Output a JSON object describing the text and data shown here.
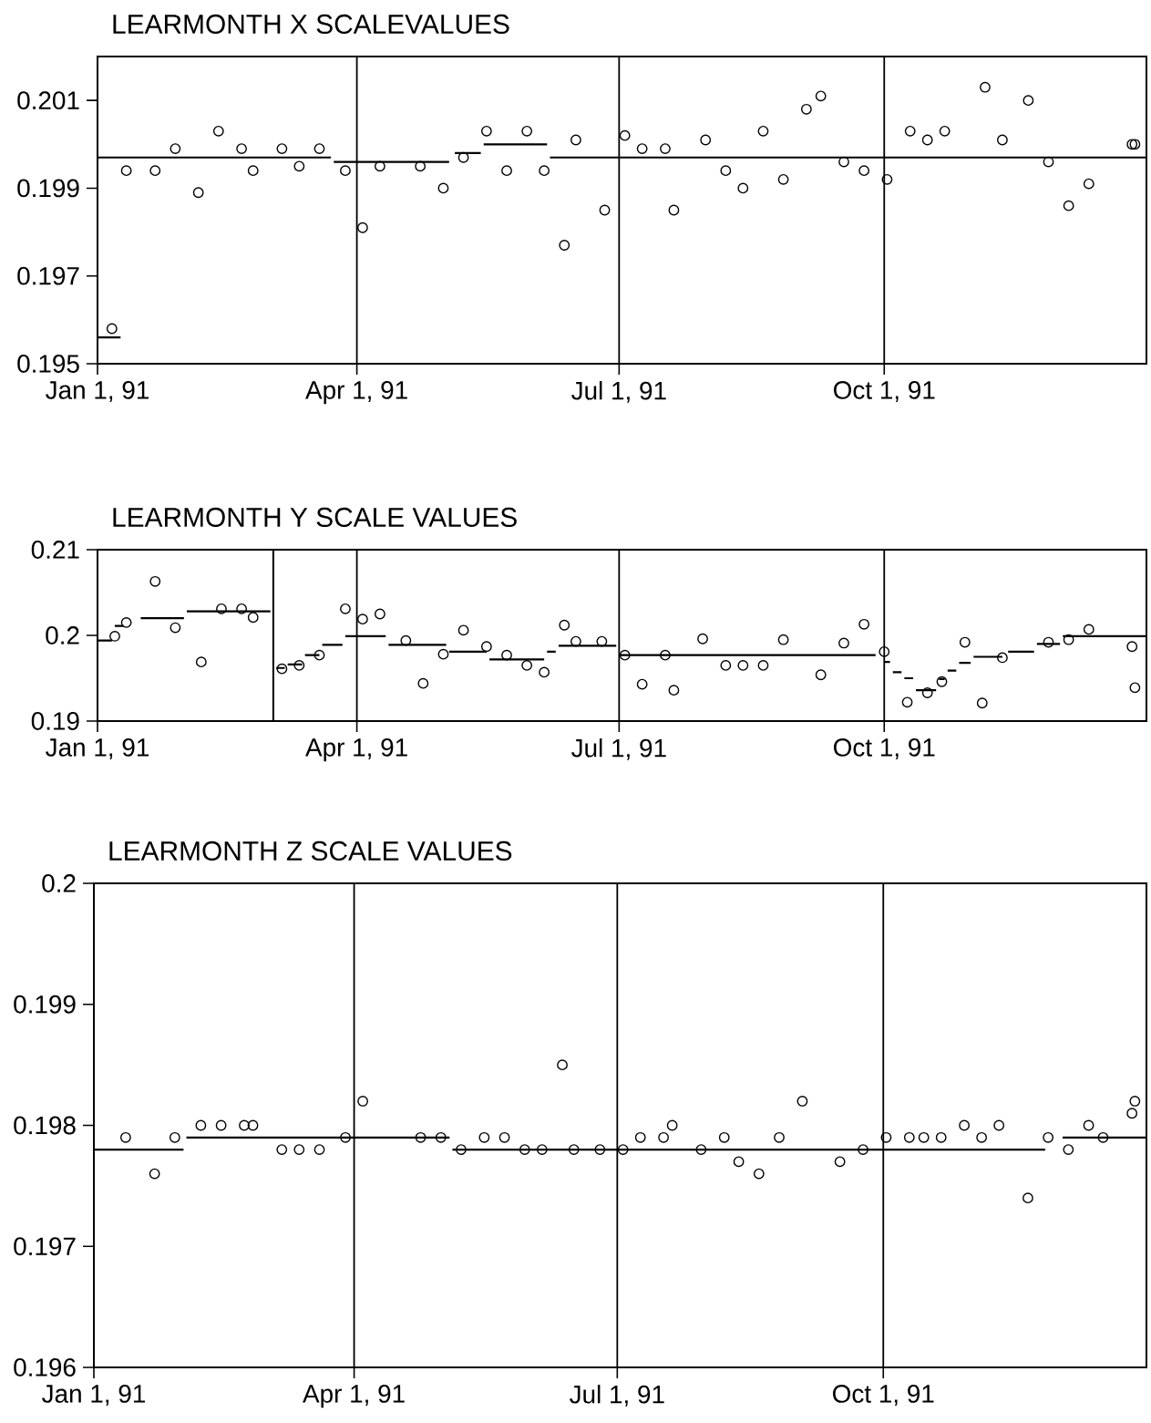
{
  "chart_data": [
    {
      "type": "scatter",
      "title": "LEARMONTH X SCALEVALUES",
      "xlim": [
        "1991-01-01",
        "1991-12-31"
      ],
      "ylim": [
        0.195,
        0.202
      ],
      "grid": "x",
      "xticks": [
        {
          "value": "1991-01-01",
          "label": "Jan 1, 91"
        },
        {
          "value": "1991-04-01",
          "label": "Apr 1, 91"
        },
        {
          "value": "1991-07-01",
          "label": "Jul 1, 91"
        },
        {
          "value": "1991-10-01",
          "label": "Oct 1, 91"
        }
      ],
      "yticks": [
        0.195,
        0.197,
        0.199,
        0.201
      ],
      "series": [
        {
          "marker": "circle",
          "color": "#000000",
          "x": [
            "1991-01-06",
            "1991-01-11",
            "1991-01-21",
            "1991-01-28",
            "1991-02-05",
            "1991-02-12",
            "1991-02-20",
            "1991-02-24",
            "1991-03-06",
            "1991-03-12",
            "1991-03-19",
            "1991-03-28",
            "1991-04-03",
            "1991-04-09",
            "1991-04-23",
            "1991-05-01",
            "1991-05-08",
            "1991-05-16",
            "1991-05-23",
            "1991-05-30",
            "1991-06-05",
            "1991-06-12",
            "1991-06-16",
            "1991-06-26",
            "1991-07-03",
            "1991-07-09",
            "1991-07-17",
            "1991-07-20",
            "1991-07-31",
            "1991-08-07",
            "1991-08-13",
            "1991-08-20",
            "1991-08-27",
            "1991-09-04",
            "1991-09-09",
            "1991-09-17",
            "1991-09-24",
            "1991-10-02",
            "1991-10-10",
            "1991-10-16",
            "1991-10-22",
            "1991-11-05",
            "1991-11-11",
            "1991-11-20",
            "1991-11-27",
            "1991-12-04",
            "1991-12-11",
            "1991-12-26",
            "1991-12-27"
          ],
          "values": [
            0.1958,
            0.1994,
            0.1994,
            0.1999,
            0.1989,
            0.2003,
            0.1999,
            0.1994,
            0.1999,
            0.1995,
            0.1999,
            0.1994,
            0.1981,
            0.1995,
            0.1995,
            0.199,
            0.1997,
            0.2003,
            0.1994,
            0.2003,
            0.1994,
            0.1977,
            0.2001,
            0.1985,
            0.2002,
            0.1999,
            0.1999,
            0.1985,
            0.2001,
            0.1994,
            0.199,
            0.2003,
            0.1992,
            0.2008,
            0.2011,
            0.1996,
            0.1994,
            0.1992,
            0.2003,
            0.2001,
            0.2003,
            0.2013,
            0.2001,
            0.201,
            0.1996,
            0.1986,
            0.1991,
            0.2,
            0.2
          ]
        },
        {
          "type": "line",
          "marker": "none",
          "color": "#000000",
          "x": [
            "1991-01-01",
            "1991-01-09",
            null,
            "1991-01-01",
            "1991-03-23",
            null,
            "1991-03-24",
            "1991-05-03",
            null,
            "1991-05-05",
            "1991-05-14",
            null,
            "1991-05-15",
            "1991-06-06",
            null,
            "1991-06-07",
            "1991-12-31"
          ],
          "values": [
            0.1956,
            0.1956,
            null,
            0.1997,
            0.1997,
            null,
            0.1996,
            0.1996,
            null,
            0.1998,
            0.1998,
            null,
            0.2,
            0.2,
            null,
            0.1997,
            0.1997
          ]
        }
      ]
    },
    {
      "type": "scatter",
      "title": "LEARMONTH Y SCALE VALUES",
      "xlim": [
        "1991-01-01",
        "1991-12-31"
      ],
      "ylim": [
        0.19,
        0.21
      ],
      "grid": "x",
      "xticks": [
        {
          "value": "1991-01-01",
          "label": "Jan 1, 91"
        },
        {
          "value": "1991-04-01",
          "label": "Apr 1, 91"
        },
        {
          "value": "1991-07-01",
          "label": "Jul 1, 91"
        },
        {
          "value": "1991-10-01",
          "label": "Oct 1, 91"
        }
      ],
      "yticks": [
        0.19,
        0.2,
        0.21
      ],
      "ref_lines": [
        {
          "axis": "x",
          "value": "1991-03-03",
          "color": "#000000"
        }
      ],
      "series": [
        {
          "marker": "circle",
          "color": "#000000",
          "x": [
            "1991-01-07",
            "1991-01-11",
            "1991-01-21",
            "1991-01-28",
            "1991-02-06",
            "1991-02-13",
            "1991-02-20",
            "1991-02-24",
            "1991-03-06",
            "1991-03-12",
            "1991-03-19",
            "1991-03-28",
            "1991-04-03",
            "1991-04-09",
            "1991-04-18",
            "1991-04-24",
            "1991-05-01",
            "1991-05-08",
            "1991-05-16",
            "1991-05-23",
            "1991-05-30",
            "1991-06-05",
            "1991-06-12",
            "1991-06-16",
            "1991-06-25",
            "1991-07-03",
            "1991-07-09",
            "1991-07-17",
            "1991-07-20",
            "1991-07-30",
            "1991-08-07",
            "1991-08-13",
            "1991-08-20",
            "1991-08-27",
            "1991-09-09",
            "1991-09-17",
            "1991-09-24",
            "1991-10-01",
            "1991-10-09",
            "1991-10-16",
            "1991-10-21",
            "1991-10-29",
            "1991-11-04",
            "1991-11-11",
            "1991-11-27",
            "1991-12-04",
            "1991-12-11",
            "1991-12-26",
            "1991-12-27"
          ],
          "values": [
            0.1999,
            0.2015,
            0.2063,
            0.2009,
            0.1969,
            0.2031,
            0.2031,
            0.2021,
            0.1961,
            0.1965,
            0.1977,
            0.2031,
            0.2019,
            0.2025,
            0.1994,
            0.1944,
            0.1978,
            0.2006,
            0.1987,
            0.1977,
            0.1965,
            0.1957,
            0.2012,
            0.1993,
            0.1993,
            0.1977,
            0.1943,
            0.1977,
            0.1936,
            0.1996,
            0.1965,
            0.1965,
            0.1965,
            0.1995,
            0.1954,
            0.1991,
            0.2013,
            0.1981,
            0.1922,
            0.1933,
            0.1946,
            0.1992,
            0.1921,
            0.1974,
            0.1992,
            0.1995,
            0.2007,
            0.1987,
            0.1939
          ]
        },
        {
          "type": "line",
          "marker": "none",
          "color": "#000000",
          "x": [
            "1991-01-01",
            "1991-01-06",
            null,
            "1991-01-07",
            "1991-01-10",
            null,
            "1991-01-16",
            "1991-01-31",
            null,
            "1991-02-01",
            "1991-03-02",
            null,
            "1991-03-04",
            "1991-03-07",
            null,
            "1991-03-08",
            "1991-03-13",
            null,
            "1991-03-14",
            "1991-03-19",
            null,
            "1991-03-20",
            "1991-03-27",
            null,
            "1991-03-28",
            "1991-04-11",
            null,
            "1991-04-12",
            "1991-05-02",
            null,
            "1991-05-03",
            "1991-05-16",
            null,
            "1991-05-17",
            "1991-06-05",
            null,
            "1991-06-06",
            "1991-06-09",
            null,
            "1991-06-10",
            "1991-06-30",
            null,
            "1991-07-01",
            "1991-09-28",
            null,
            "1991-10-01",
            "1991-10-03",
            null,
            "1991-10-04",
            "1991-10-07",
            null,
            "1991-10-08",
            "1991-10-11",
            null,
            "1991-10-12",
            "1991-10-19",
            null,
            "1991-10-20",
            "1991-10-22",
            null,
            "1991-10-23",
            "1991-10-26",
            null,
            "1991-10-27",
            "1991-10-31",
            null,
            "1991-11-01",
            "1991-11-11",
            null,
            "1991-11-13",
            "1991-11-22",
            null,
            "1991-11-23",
            "1991-12-01",
            null,
            "1991-12-02",
            "1991-12-31"
          ],
          "values": [
            0.1994,
            0.1994,
            null,
            0.2011,
            0.2011,
            null,
            0.202,
            0.202,
            null,
            0.2028,
            0.2028,
            null,
            0.1962,
            0.1962,
            null,
            0.1966,
            0.1966,
            null,
            0.1977,
            0.1977,
            null,
            0.1989,
            0.1989,
            null,
            0.1999,
            0.1999,
            null,
            0.1989,
            0.1989,
            null,
            0.1981,
            0.1981,
            null,
            0.1972,
            0.1972,
            null,
            0.1981,
            0.1981,
            null,
            0.1988,
            0.1988,
            null,
            0.1977,
            0.1977,
            null,
            0.1969,
            0.1969,
            null,
            0.1957,
            0.1957,
            null,
            0.195,
            0.195,
            null,
            0.1936,
            0.1936,
            null,
            0.1949,
            0.1949,
            null,
            0.1959,
            0.1959,
            null,
            0.1968,
            0.1968,
            null,
            0.1975,
            0.1975,
            null,
            0.1981,
            0.1981,
            null,
            0.199,
            0.199,
            null,
            0.1999,
            0.1999
          ]
        }
      ]
    },
    {
      "type": "scatter",
      "title": "LEARMONTH Z SCALE VALUES",
      "xlim": [
        "1991-01-01",
        "1991-12-31"
      ],
      "ylim": [
        0.196,
        0.2
      ],
      "grid": "x",
      "xticks": [
        {
          "value": "1991-01-01",
          "label": "Jan 1, 91"
        },
        {
          "value": "1991-04-01",
          "label": "Apr 1, 91"
        },
        {
          "value": "1991-07-01",
          "label": "Jul 1, 91"
        },
        {
          "value": "1991-10-01",
          "label": "Oct 1, 91"
        }
      ],
      "yticks": [
        0.196,
        0.197,
        0.198,
        0.199,
        0.2
      ],
      "series": [
        {
          "marker": "circle",
          "color": "#000000",
          "x": [
            "1991-01-12",
            "1991-01-22",
            "1991-01-29",
            "1991-02-07",
            "1991-02-14",
            "1991-02-22",
            "1991-02-25",
            "1991-03-07",
            "1991-03-13",
            "1991-03-20",
            "1991-03-29",
            "1991-04-04",
            "1991-04-24",
            "1991-05-01",
            "1991-05-08",
            "1991-05-16",
            "1991-05-23",
            "1991-05-30",
            "1991-06-05",
            "1991-06-12",
            "1991-06-16",
            "1991-06-25",
            "1991-07-03",
            "1991-07-09",
            "1991-07-17",
            "1991-07-20",
            "1991-07-30",
            "1991-08-07",
            "1991-08-12",
            "1991-08-19",
            "1991-08-26",
            "1991-09-03",
            "1991-09-16",
            "1991-09-24",
            "1991-10-02",
            "1991-10-10",
            "1991-10-15",
            "1991-10-21",
            "1991-10-29",
            "1991-11-04",
            "1991-11-10",
            "1991-11-20",
            "1991-11-27",
            "1991-12-04",
            "1991-12-11",
            "1991-12-16",
            "1991-12-26",
            "1991-12-27"
          ],
          "values": [
            0.1979,
            0.1976,
            0.1979,
            0.198,
            0.198,
            0.198,
            0.198,
            0.1978,
            0.1978,
            0.1978,
            0.1979,
            0.1982,
            0.1979,
            0.1979,
            0.1978,
            0.1979,
            0.1979,
            0.1978,
            0.1978,
            0.1985,
            0.1978,
            0.1978,
            0.1978,
            0.1979,
            0.1979,
            0.198,
            0.1978,
            0.1979,
            0.1977,
            0.1976,
            0.1979,
            0.1982,
            0.1977,
            0.1978,
            0.1979,
            0.1979,
            0.1979,
            0.1979,
            0.198,
            0.1979,
            0.198,
            0.1974,
            0.1979,
            0.1978,
            0.198,
            0.1979,
            0.1981,
            0.1982
          ]
        },
        {
          "type": "line",
          "marker": "none",
          "color": "#000000",
          "x": [
            "1991-01-01",
            "1991-02-01",
            null,
            "1991-02-02",
            "1991-05-04",
            null,
            "1991-05-05",
            "1991-11-26",
            null,
            "1991-12-02",
            "1991-12-31"
          ],
          "values": [
            0.1978,
            0.1978,
            null,
            0.1979,
            0.1979,
            null,
            0.1978,
            0.1978,
            null,
            0.1979,
            0.1979
          ]
        }
      ]
    }
  ]
}
